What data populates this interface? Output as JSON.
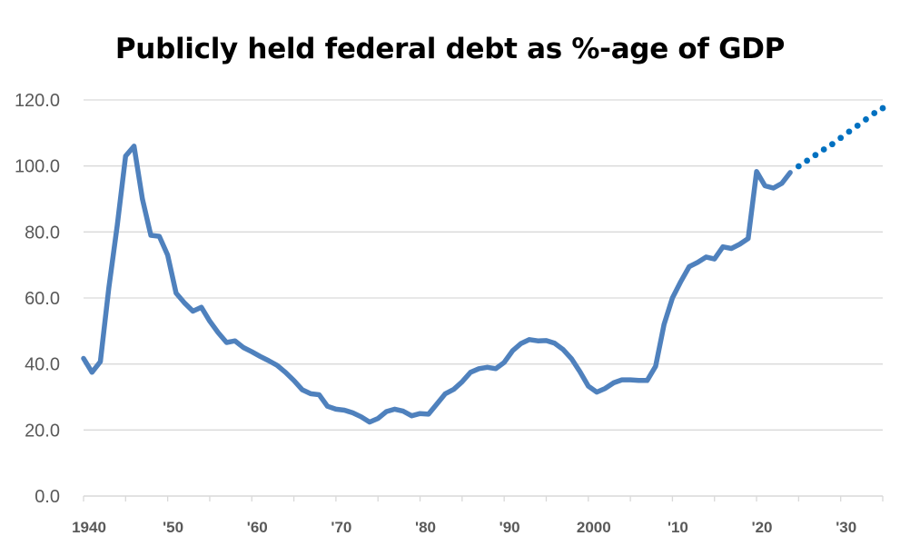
{
  "chart_data": {
    "type": "line",
    "title": "Publicly held federal debt as %-age of GDP",
    "xlabel": "",
    "ylabel": "",
    "xlim": [
      1940,
      2035
    ],
    "ylim": [
      0,
      120
    ],
    "grid": "horizontal",
    "legend": "none",
    "y_ticks": [
      {
        "value": 0,
        "label": "0.0"
      },
      {
        "value": 20,
        "label": "20.0"
      },
      {
        "value": 40,
        "label": "40.0"
      },
      {
        "value": 60,
        "label": "60.0"
      },
      {
        "value": 80,
        "label": "80.0"
      },
      {
        "value": 100,
        "label": "100.0"
      },
      {
        "value": 120,
        "label": "120.0"
      }
    ],
    "x_ticks": [
      {
        "value": 1940,
        "label": "1940"
      },
      {
        "value": 1950,
        "label": "'50"
      },
      {
        "value": 1960,
        "label": "'60"
      },
      {
        "value": 1970,
        "label": "'70"
      },
      {
        "value": 1980,
        "label": "'80"
      },
      {
        "value": 1990,
        "label": "'90"
      },
      {
        "value": 2000,
        "label": "2000"
      },
      {
        "value": 2010,
        "label": "'10"
      },
      {
        "value": 2020,
        "label": "'20"
      },
      {
        "value": 2030,
        "label": "'30"
      }
    ],
    "series": [
      {
        "style": "solid",
        "color": "#4F81BD",
        "points": [
          [
            1940,
            41.7
          ],
          [
            1941,
            37.5
          ],
          [
            1942,
            40.7
          ],
          [
            1943,
            63.0
          ],
          [
            1944,
            82.0
          ],
          [
            1945,
            103.0
          ],
          [
            1946,
            106.0
          ],
          [
            1947,
            90.0
          ],
          [
            1948,
            79.0
          ],
          [
            1949,
            78.7
          ],
          [
            1950,
            73.0
          ],
          [
            1951,
            61.5
          ],
          [
            1952,
            58.5
          ],
          [
            1953,
            56.0
          ],
          [
            1954,
            57.2
          ],
          [
            1955,
            53.0
          ],
          [
            1956,
            49.5
          ],
          [
            1957,
            46.5
          ],
          [
            1958,
            47.0
          ],
          [
            1959,
            45.0
          ],
          [
            1960,
            43.7
          ],
          [
            1961,
            42.3
          ],
          [
            1962,
            41.0
          ],
          [
            1963,
            39.6
          ],
          [
            1964,
            37.5
          ],
          [
            1965,
            35.0
          ],
          [
            1966,
            32.2
          ],
          [
            1967,
            31.0
          ],
          [
            1968,
            30.7
          ],
          [
            1969,
            27.2
          ],
          [
            1970,
            26.3
          ],
          [
            1971,
            26.0
          ],
          [
            1972,
            25.2
          ],
          [
            1973,
            24.0
          ],
          [
            1974,
            22.4
          ],
          [
            1975,
            23.5
          ],
          [
            1976,
            25.6
          ],
          [
            1977,
            26.3
          ],
          [
            1978,
            25.7
          ],
          [
            1979,
            24.3
          ],
          [
            1980,
            25.0
          ],
          [
            1981,
            24.8
          ],
          [
            1982,
            27.9
          ],
          [
            1983,
            31.0
          ],
          [
            1984,
            32.3
          ],
          [
            1985,
            34.6
          ],
          [
            1986,
            37.5
          ],
          [
            1987,
            38.6
          ],
          [
            1988,
            39.0
          ],
          [
            1989,
            38.6
          ],
          [
            1990,
            40.5
          ],
          [
            1991,
            44.0
          ],
          [
            1992,
            46.2
          ],
          [
            1993,
            47.4
          ],
          [
            1994,
            47.0
          ],
          [
            1995,
            47.1
          ],
          [
            1996,
            46.3
          ],
          [
            1997,
            44.4
          ],
          [
            1998,
            41.6
          ],
          [
            1999,
            37.7
          ],
          [
            2000,
            33.3
          ],
          [
            2001,
            31.5
          ],
          [
            2002,
            32.6
          ],
          [
            2003,
            34.3
          ],
          [
            2004,
            35.2
          ],
          [
            2005,
            35.2
          ],
          [
            2006,
            35.0
          ],
          [
            2007,
            35.0
          ],
          [
            2008,
            39.3
          ],
          [
            2009,
            52.0
          ],
          [
            2010,
            60.0
          ],
          [
            2011,
            65.0
          ],
          [
            2012,
            69.5
          ],
          [
            2013,
            70.8
          ],
          [
            2014,
            72.4
          ],
          [
            2015,
            71.8
          ],
          [
            2016,
            75.5
          ],
          [
            2017,
            75.0
          ],
          [
            2018,
            76.3
          ],
          [
            2019,
            78.0
          ],
          [
            2020,
            98.3
          ],
          [
            2021,
            94.0
          ],
          [
            2022,
            93.3
          ],
          [
            2023,
            94.7
          ],
          [
            2024,
            98.0
          ]
        ]
      },
      {
        "style": "dotted",
        "color": "#0070C0",
        "points": [
          [
            2025,
            99.9
          ],
          [
            2026,
            101.6
          ],
          [
            2027,
            103.3
          ],
          [
            2028,
            105.0
          ],
          [
            2029,
            106.6
          ],
          [
            2030,
            108.5
          ],
          [
            2031,
            110.4
          ],
          [
            2032,
            112.2
          ],
          [
            2033,
            114.1
          ],
          [
            2034,
            116.0
          ],
          [
            2035,
            117.5
          ]
        ]
      }
    ]
  }
}
